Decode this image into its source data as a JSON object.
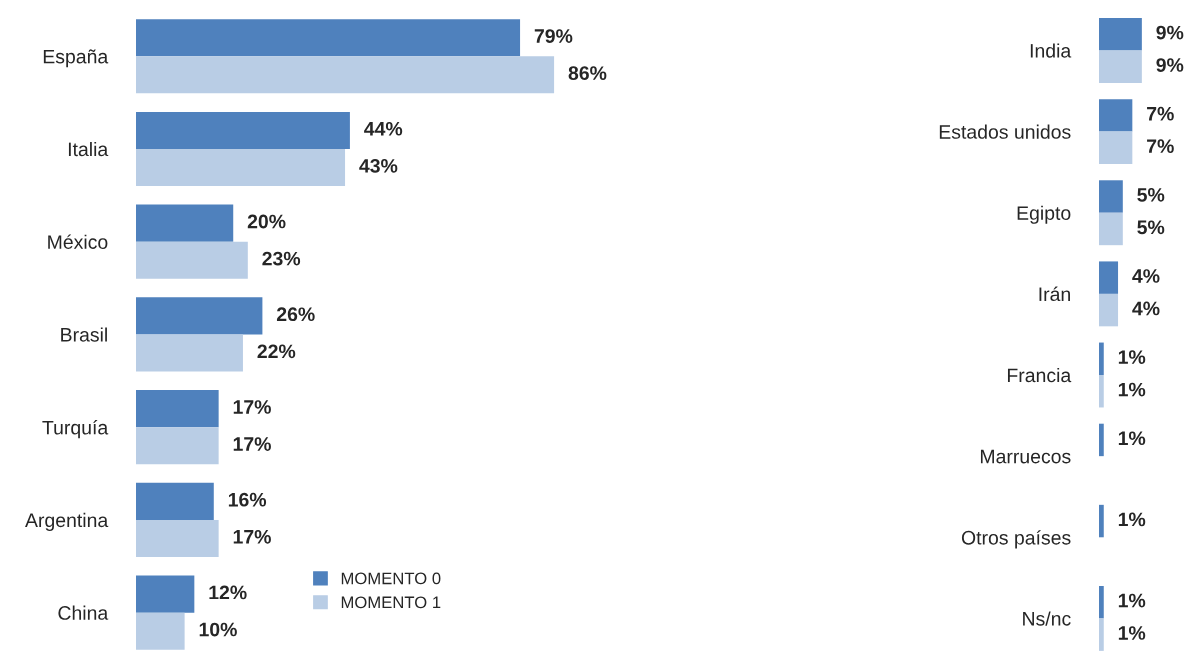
{
  "chart_data": [
    {
      "type": "bar",
      "orientation": "horizontal",
      "categories": [
        "España",
        "Italia",
        "México",
        "Brasil",
        "Turquía",
        "Argentina",
        "China"
      ],
      "tick_labels": "y",
      "grid": false,
      "legend": "bottom",
      "series": [
        {
          "name": "MOMENTO 0",
          "color": "#4f81bd",
          "values": [
            79,
            44,
            20,
            26,
            17,
            16,
            12
          ],
          "value_labels": [
            "79%",
            "44%",
            "20%",
            "26%",
            "17%",
            "16%",
            "12%"
          ]
        },
        {
          "name": "MOMENTO 1",
          "color": "#b9cde5",
          "values": [
            86,
            43,
            23,
            22,
            17,
            17,
            10
          ],
          "value_labels": [
            "86%",
            "43%",
            "23%",
            "22%",
            "17%",
            "17%",
            "10%"
          ]
        }
      ]
    },
    {
      "type": "bar",
      "orientation": "horizontal",
      "categories": [
        "India",
        "Estados unidos",
        "Egipto",
        "Irán",
        "Francia",
        "Marruecos",
        "Otros países",
        "Ns/nc"
      ],
      "tick_labels": "y",
      "grid": false,
      "legend": false,
      "series": [
        {
          "color": "#4f81bd",
          "values": [
            9,
            7,
            5,
            4,
            1,
            1,
            1,
            1
          ],
          "value_labels": [
            "9%",
            "7%",
            "5%",
            "4%",
            "1%",
            "1%",
            "1%",
            "1%"
          ]
        },
        {
          "color": "#b9cde5",
          "values": [
            9,
            7,
            5,
            4,
            1,
            null,
            null,
            1
          ],
          "value_labels": [
            "9%",
            "7%",
            "5%",
            "4%",
            "1%",
            null,
            null,
            "1%"
          ]
        }
      ]
    }
  ]
}
